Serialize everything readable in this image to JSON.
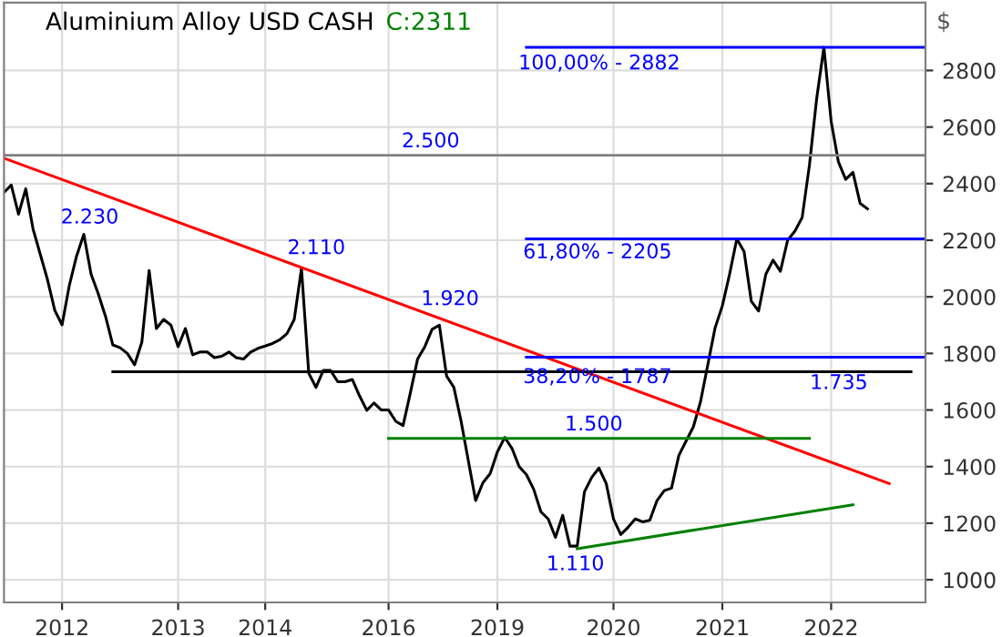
{
  "chart_data": {
    "type": "line",
    "title": "Aluminium Alloy USD CASH",
    "subtitle": "C:2311",
    "ylabel": "$",
    "categories": [
      null,
      null,
      null,
      null,
      null,
      null,
      null,
      null,
      "2012",
      null,
      null,
      null,
      null,
      null,
      null,
      null,
      null,
      null,
      null,
      null,
      null,
      null,
      null,
      null,
      "2013",
      null,
      null,
      null,
      null,
      null,
      null,
      null,
      null,
      null,
      null,
      null,
      "2014",
      null,
      null,
      null,
      null,
      null,
      null,
      null,
      null,
      null,
      null,
      null,
      null,
      null,
      null,
      null,
      null,
      "2016",
      null,
      null,
      null,
      null,
      null,
      null,
      null,
      null,
      null,
      null,
      null,
      null,
      null,
      null,
      "2019",
      null,
      null,
      null,
      null,
      null,
      null,
      null,
      null,
      null,
      null,
      null,
      null,
      null,
      null,
      null,
      "2020",
      null,
      null,
      null,
      null,
      null,
      null,
      null,
      null,
      null,
      null,
      null,
      null,
      null,
      null,
      "2021",
      null,
      null,
      null,
      null,
      null,
      null,
      null,
      null,
      null,
      null,
      null,
      null,
      null,
      null,
      "2022",
      null,
      null,
      null,
      null,
      null,
      null,
      null,
      null,
      null,
      null,
      null,
      null,
      null
    ],
    "ylim": [
      920,
      3040
    ],
    "yticks": [
      1000,
      1200,
      1400,
      1600,
      1800,
      2000,
      2200,
      2400,
      2600,
      2800
    ],
    "grid": true,
    "series": [
      {
        "color": "#000000",
        "values": [
          2369,
          2395,
          2292,
          2382,
          2240,
          2150,
          2060,
          1952,
          1901,
          2040,
          2144,
          2221,
          2080,
          2010,
          1930,
          1830,
          1820,
          1800,
          1760,
          1840,
          2093,
          1888,
          1920,
          1900,
          1824,
          1888,
          1795,
          1805,
          1805,
          1785,
          1790,
          1805,
          1785,
          1780,
          1805,
          1818,
          1826,
          1835,
          1848,
          1870,
          1920,
          2100,
          1730,
          1680,
          1740,
          1740,
          1700,
          1700,
          1708,
          1650,
          1599,
          1625,
          1600,
          1600,
          1560,
          1545,
          1660,
          1780,
          1824,
          1885,
          1900,
          1720,
          1680,
          1560,
          1420,
          1280,
          1343,
          1375,
          1452,
          1503,
          1465,
          1400,
          1372,
          1320,
          1240,
          1215,
          1150,
          1228,
          1119,
          1119,
          1311,
          1362,
          1395,
          1340,
          1215,
          1160,
          1185,
          1215,
          1205,
          1210,
          1280,
          1315,
          1324,
          1439,
          1490,
          1540,
          1630,
          1760,
          1890,
          1968,
          2080,
          2205,
          2160,
          1984,
          1950,
          2080,
          2130,
          2090,
          2200,
          2232,
          2280,
          2464,
          2700,
          2882,
          2620,
          2477,
          2415,
          2440,
          2330,
          2311,
          null,
          null,
          null,
          null,
          null,
          null,
          null,
          null
        ]
      },
      {
        "color": "#ff0000",
        "values": [
          2490,
          null,
          null,
          null,
          null,
          null,
          null,
          null,
          null,
          null,
          null,
          null,
          null,
          null,
          null,
          null,
          null,
          null,
          null,
          null,
          null,
          null,
          null,
          null,
          null,
          null,
          null,
          null,
          null,
          null,
          null,
          null,
          null,
          null,
          null,
          null,
          null,
          null,
          null,
          null,
          null,
          null,
          null,
          null,
          null,
          null,
          null,
          null,
          null,
          null,
          null,
          null,
          null,
          null,
          null,
          null,
          null,
          null,
          null,
          null,
          null,
          null,
          null,
          null,
          null,
          null,
          null,
          null,
          null,
          null,
          null,
          null,
          null,
          null,
          null,
          null,
          null,
          null,
          null,
          null,
          null,
          null,
          null,
          null,
          null,
          null,
          null,
          null,
          null,
          null,
          null,
          null,
          null,
          null,
          null,
          null,
          null,
          null,
          null,
          null,
          null,
          null,
          null,
          null,
          null,
          null,
          null,
          null,
          null,
          null,
          null,
          null,
          null,
          null,
          null,
          null,
          null,
          null,
          null,
          null,
          null,
          null,
          1340,
          null,
          null,
          null,
          null,
          null
        ]
      },
      {
        "color": "#000000",
        "values": [
          null,
          null,
          null,
          null,
          null,
          null,
          null,
          null,
          null,
          null,
          null,
          null,
          null,
          null,
          null,
          1735,
          null,
          null,
          null,
          null,
          null,
          null,
          null,
          null,
          null,
          null,
          null,
          null,
          null,
          null,
          null,
          null,
          null,
          null,
          null,
          null,
          null,
          null,
          null,
          null,
          null,
          null,
          null,
          null,
          null,
          null,
          null,
          null,
          null,
          null,
          null,
          null,
          null,
          null,
          null,
          null,
          null,
          null,
          null,
          null,
          null,
          null,
          null,
          null,
          null,
          null,
          null,
          null,
          null,
          null,
          null,
          null,
          null,
          null,
          null,
          null,
          null,
          null,
          null,
          null,
          null,
          null,
          null,
          null,
          null,
          null,
          null,
          null,
          null,
          null,
          null,
          null,
          null,
          null,
          null,
          null,
          null,
          null,
          null,
          null,
          null,
          null,
          null,
          null,
          null,
          null,
          null,
          null,
          null,
          null,
          null,
          null,
          null,
          null,
          null,
          null,
          null,
          null,
          null,
          null,
          null,
          null,
          null,
          null,
          null,
          1735,
          null,
          null
        ]
      },
      {
        "color": "#008000",
        "values": [
          null,
          null,
          null,
          null,
          null,
          null,
          null,
          null,
          null,
          null,
          null,
          null,
          null,
          null,
          null,
          null,
          null,
          null,
          null,
          null,
          null,
          null,
          null,
          null,
          null,
          null,
          null,
          null,
          null,
          null,
          null,
          null,
          null,
          null,
          null,
          null,
          null,
          null,
          null,
          null,
          null,
          null,
          null,
          null,
          null,
          null,
          null,
          null,
          null,
          null,
          null,
          null,
          null,
          1500,
          null,
          null,
          null,
          null,
          null,
          null,
          null,
          null,
          null,
          null,
          null,
          null,
          null,
          null,
          null,
          null,
          null,
          null,
          null,
          null,
          null,
          null,
          null,
          null,
          null,
          null,
          null,
          null,
          null,
          null,
          null,
          null,
          null,
          null,
          null,
          null,
          null,
          null,
          null,
          null,
          null,
          null,
          null,
          null,
          null,
          null,
          null,
          null,
          null,
          null,
          null,
          null,
          null,
          null,
          null,
          null,
          null,
          1500,
          null,
          null,
          null,
          null,
          null,
          null,
          null,
          null,
          null,
          null,
          null,
          null,
          null,
          null,
          null,
          null
        ]
      },
      {
        "color": "#008000",
        "values": [
          null,
          null,
          null,
          null,
          null,
          null,
          null,
          null,
          null,
          null,
          null,
          null,
          null,
          null,
          null,
          null,
          null,
          null,
          null,
          null,
          null,
          null,
          null,
          null,
          null,
          null,
          null,
          null,
          null,
          null,
          null,
          null,
          null,
          null,
          null,
          null,
          null,
          null,
          null,
          null,
          null,
          null,
          null,
          null,
          null,
          null,
          null,
          null,
          null,
          null,
          null,
          null,
          null,
          null,
          null,
          null,
          null,
          null,
          null,
          null,
          null,
          null,
          null,
          null,
          null,
          null,
          null,
          null,
          null,
          null,
          null,
          null,
          null,
          null,
          null,
          null,
          null,
          null,
          null,
          1110,
          null,
          null,
          null,
          null,
          null,
          null,
          null,
          null,
          null,
          null,
          null,
          null,
          null,
          null,
          null,
          null,
          null,
          null,
          null,
          null,
          null,
          null,
          null,
          null,
          null,
          null,
          null,
          null,
          null,
          null,
          null,
          null,
          null,
          null,
          null,
          null,
          null,
          1265,
          null,
          null,
          null,
          null,
          null,
          null,
          null,
          null,
          null,
          null
        ]
      },
      {
        "color": "#0000ff",
        "values": [
          null,
          null,
          null,
          null,
          null,
          null,
          null,
          null,
          null,
          null,
          null,
          null,
          null,
          null,
          null,
          null,
          null,
          null,
          null,
          null,
          null,
          null,
          null,
          null,
          null,
          null,
          null,
          null,
          null,
          null,
          null,
          null,
          null,
          null,
          null,
          null,
          null,
          null,
          null,
          null,
          null,
          null,
          null,
          null,
          null,
          null,
          null,
          null,
          null,
          null,
          null,
          null,
          null,
          null,
          null,
          null,
          null,
          null,
          null,
          null,
          null,
          null,
          null,
          null,
          null,
          null,
          null,
          null,
          null,
          null,
          null,
          null,
          2882,
          null,
          null,
          null,
          null,
          null,
          null,
          null,
          null,
          null,
          null,
          null,
          null,
          null,
          null,
          null,
          null,
          null,
          null,
          null,
          null,
          null,
          null,
          null,
          null,
          null,
          null,
          null,
          null,
          null,
          null,
          null,
          null,
          null,
          null,
          null,
          null,
          null,
          null,
          null,
          null,
          null,
          null,
          null,
          null,
          null,
          null,
          null,
          null,
          null,
          null,
          null,
          null,
          null,
          null,
          2882
        ]
      },
      {
        "color": "#0000ff",
        "values": [
          null,
          null,
          null,
          null,
          null,
          null,
          null,
          null,
          null,
          null,
          null,
          null,
          null,
          null,
          null,
          null,
          null,
          null,
          null,
          null,
          null,
          null,
          null,
          null,
          null,
          null,
          null,
          null,
          null,
          null,
          null,
          null,
          null,
          null,
          null,
          null,
          null,
          null,
          null,
          null,
          null,
          null,
          null,
          null,
          null,
          null,
          null,
          null,
          null,
          null,
          null,
          null,
          null,
          null,
          null,
          null,
          null,
          null,
          null,
          null,
          null,
          null,
          null,
          null,
          null,
          null,
          null,
          null,
          null,
          null,
          null,
          null,
          2205,
          null,
          null,
          null,
          null,
          null,
          null,
          null,
          null,
          null,
          null,
          null,
          null,
          null,
          null,
          null,
          null,
          null,
          null,
          null,
          null,
          null,
          null,
          null,
          null,
          null,
          null,
          null,
          null,
          null,
          null,
          null,
          null,
          null,
          null,
          null,
          null,
          null,
          null,
          null,
          null,
          null,
          null,
          null,
          null,
          null,
          null,
          null,
          null,
          null,
          null,
          null,
          null,
          null,
          null,
          2205
        ]
      },
      {
        "color": "#0000ff",
        "values": [
          null,
          null,
          null,
          null,
          null,
          null,
          null,
          null,
          null,
          null,
          null,
          null,
          null,
          null,
          null,
          null,
          null,
          null,
          null,
          null,
          null,
          null,
          null,
          null,
          null,
          null,
          null,
          null,
          null,
          null,
          null,
          null,
          null,
          null,
          null,
          null,
          null,
          null,
          null,
          null,
          null,
          null,
          null,
          null,
          null,
          null,
          null,
          null,
          null,
          null,
          null,
          null,
          null,
          null,
          null,
          null,
          null,
          null,
          null,
          null,
          null,
          null,
          null,
          null,
          null,
          null,
          null,
          null,
          null,
          null,
          null,
          null,
          1787,
          null,
          null,
          null,
          null,
          null,
          null,
          null,
          null,
          null,
          null,
          null,
          null,
          null,
          null,
          null,
          null,
          null,
          null,
          null,
          null,
          null,
          null,
          null,
          null,
          null,
          null,
          null,
          null,
          null,
          null,
          null,
          null,
          null,
          null,
          null,
          null,
          null,
          null,
          null,
          null,
          null,
          null,
          null,
          null,
          null,
          null,
          null,
          null,
          null,
          null,
          null,
          null,
          null,
          null,
          1787
        ]
      }
    ],
    "ref_lines": [
      {
        "axis": "y",
        "value": 2500,
        "color": "#808080"
      }
    ],
    "annotations": [
      "2.500",
      "2.230",
      "2.110",
      "1.920",
      "100,00% - 2882",
      "61,80% - 2205",
      "38,20% - 1787",
      "1.735",
      "1.500",
      "1.110"
    ]
  }
}
